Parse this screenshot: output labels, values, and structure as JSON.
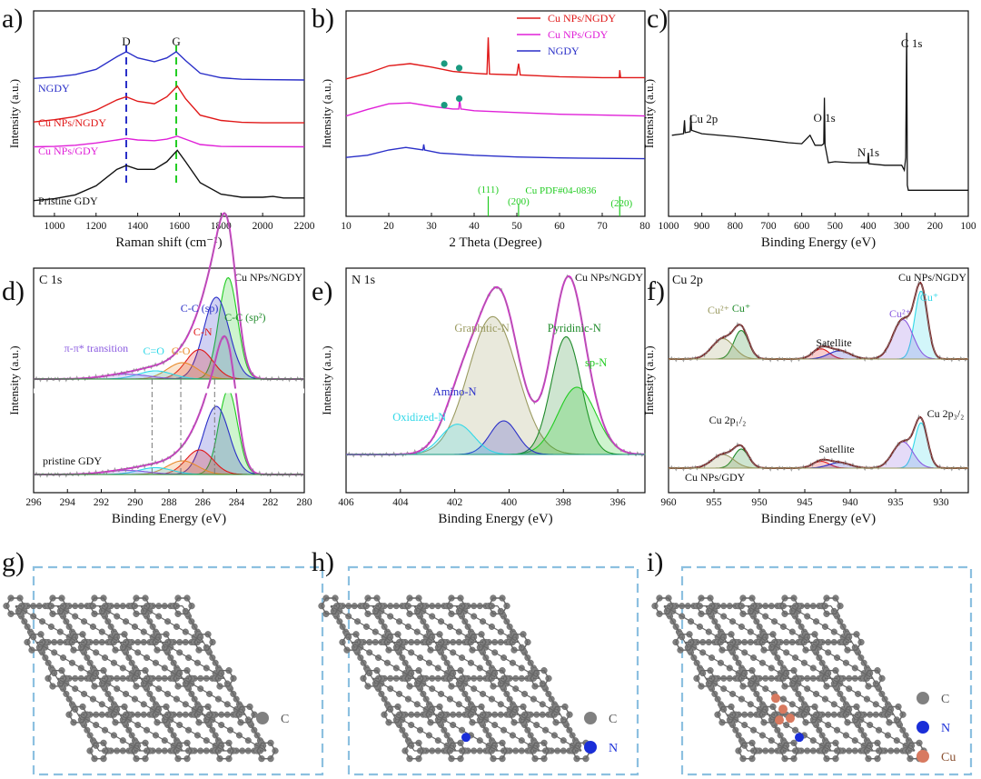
{
  "panel_letters": {
    "a": "a)",
    "b": "b)",
    "c": "c)",
    "d": "d)",
    "e": "e)",
    "f": "f)",
    "g": "g)",
    "h": "h)",
    "i": "i)"
  },
  "colors": {
    "blue": "#2a2fc8",
    "red": "#e01818",
    "magenta": "#e020d8",
    "black": "#111111",
    "green": "#22cc22",
    "gray": "#888888",
    "olive": "#9a9a60",
    "darkgreen": "#1f8a2a",
    "cyan": "#30d8e8",
    "teal": "#1a9a80",
    "brown": "#7a1a1a",
    "purple": "#8a5ae0",
    "orange": "#e88a2a",
    "dashbox": "#8cc0e0",
    "atomC": "#808080",
    "atomN": "#1a2ed8",
    "atomCu": "#d87a60"
  },
  "chart_data": [
    {
      "id": "a",
      "type": "line",
      "xlabel": "Raman shift (cm⁻¹)",
      "ylabel": "Intensity (a.u.)",
      "xlim": [
        900,
        2200
      ],
      "xticks": [
        1000,
        1200,
        1400,
        1600,
        1800,
        2000,
        2200
      ],
      "annotations": [
        "D",
        "G"
      ],
      "marker_lines": [
        1345,
        1585
      ],
      "series": [
        {
          "name": "NGDY",
          "color": "blue",
          "offset": 3.15,
          "points": [
            [
              900,
              0.08
            ],
            [
              1000,
              0.12
            ],
            [
              1100,
              0.18
            ],
            [
              1200,
              0.32
            ],
            [
              1300,
              0.65
            ],
            [
              1345,
              0.78
            ],
            [
              1400,
              0.62
            ],
            [
              1480,
              0.52
            ],
            [
              1540,
              0.62
            ],
            [
              1585,
              0.78
            ],
            [
              1630,
              0.55
            ],
            [
              1700,
              0.22
            ],
            [
              1800,
              0.1
            ],
            [
              1900,
              0.06
            ],
            [
              2000,
              0.05
            ],
            [
              2200,
              0.04
            ]
          ]
        },
        {
          "name": "Cu NPs/NGDY",
          "color": "red",
          "offset": 2.05,
          "points": [
            [
              900,
              0.04
            ],
            [
              1000,
              0.1
            ],
            [
              1100,
              0.18
            ],
            [
              1200,
              0.35
            ],
            [
              1300,
              0.62
            ],
            [
              1345,
              0.7
            ],
            [
              1400,
              0.58
            ],
            [
              1480,
              0.52
            ],
            [
              1540,
              0.7
            ],
            [
              1590,
              0.98
            ],
            [
              1630,
              0.65
            ],
            [
              1700,
              0.22
            ],
            [
              1800,
              0.08
            ],
            [
              1900,
              0.03
            ],
            [
              2000,
              0.02
            ],
            [
              2200,
              0.02
            ]
          ]
        },
        {
          "name": "Cu NPs/GDY",
          "color": "magenta",
          "offset": 1.42,
          "points": [
            [
              900,
              0.02
            ],
            [
              1000,
              0.03
            ],
            [
              1100,
              0.06
            ],
            [
              1200,
              0.12
            ],
            [
              1300,
              0.2
            ],
            [
              1345,
              0.24
            ],
            [
              1400,
              0.2
            ],
            [
              1480,
              0.18
            ],
            [
              1540,
              0.22
            ],
            [
              1590,
              0.3
            ],
            [
              1640,
              0.2
            ],
            [
              1700,
              0.08
            ],
            [
              1800,
              0.03
            ],
            [
              2200,
              0.02
            ]
          ]
        },
        {
          "name": "Pristine GDY",
          "color": "black",
          "offset": 0.0,
          "points": [
            [
              900,
              0.03
            ],
            [
              1000,
              0.08
            ],
            [
              1100,
              0.18
            ],
            [
              1200,
              0.42
            ],
            [
              1300,
              0.85
            ],
            [
              1345,
              0.95
            ],
            [
              1400,
              0.85
            ],
            [
              1480,
              0.85
            ],
            [
              1540,
              1.05
            ],
            [
              1590,
              1.35
            ],
            [
              1630,
              1.05
            ],
            [
              1700,
              0.5
            ],
            [
              1800,
              0.2
            ],
            [
              1900,
              0.12
            ],
            [
              2000,
              0.12
            ],
            [
              2050,
              0.14
            ],
            [
              2100,
              0.1
            ],
            [
              2200,
              0.1
            ]
          ]
        }
      ]
    },
    {
      "id": "b",
      "type": "line",
      "xlabel": "2 Theta (Degree)",
      "ylabel": "Intensity (a.u.)",
      "xlim": [
        10,
        80
      ],
      "xticks": [
        10,
        20,
        30,
        40,
        50,
        60,
        70,
        80
      ],
      "reference": {
        "label": "Cu PDF#04-0836",
        "peaks": [
          {
            "x": 43.3,
            "label": "(111)"
          },
          {
            "x": 50.4,
            "label": "(200)"
          },
          {
            "x": 74.1,
            "label": "(220)"
          }
        ]
      },
      "dots": [
        [
          33,
          3.25
        ],
        [
          36.5,
          3.15
        ],
        [
          33,
          2.3
        ],
        [
          36.5,
          2.45
        ]
      ],
      "series": [
        {
          "name": "Cu NPs/NGDY",
          "color": "red",
          "offset": 2.75,
          "points": [
            [
              10,
              0.15
            ],
            [
              15,
              0.28
            ],
            [
              20,
              0.45
            ],
            [
              25,
              0.5
            ],
            [
              30,
              0.42
            ],
            [
              35,
              0.32
            ],
            [
              40,
              0.28
            ],
            [
              43,
              0.26
            ],
            [
              43.3,
              1.1
            ],
            [
              43.6,
              0.26
            ],
            [
              50,
              0.24
            ],
            [
              50.4,
              0.5
            ],
            [
              50.8,
              0.24
            ],
            [
              60,
              0.2
            ],
            [
              70,
              0.18
            ],
            [
              74,
              0.18
            ],
            [
              74.1,
              0.35
            ],
            [
              74.3,
              0.18
            ],
            [
              80,
              0.18
            ]
          ]
        },
        {
          "name": "Cu NPs/GDY",
          "color": "magenta",
          "offset": 1.95,
          "points": [
            [
              10,
              0.1
            ],
            [
              15,
              0.25
            ],
            [
              20,
              0.38
            ],
            [
              25,
              0.4
            ],
            [
              30,
              0.32
            ],
            [
              35,
              0.26
            ],
            [
              36.4,
              0.26
            ],
            [
              36.6,
              0.48
            ],
            [
              36.9,
              0.26
            ],
            [
              40,
              0.22
            ],
            [
              50,
              0.18
            ],
            [
              60,
              0.14
            ],
            [
              70,
              0.12
            ],
            [
              80,
              0.1
            ]
          ]
        },
        {
          "name": "NGDY",
          "color": "blue",
          "offset": 1.05,
          "points": [
            [
              10,
              0.05
            ],
            [
              15,
              0.1
            ],
            [
              20,
              0.22
            ],
            [
              24,
              0.28
            ],
            [
              28,
              0.22
            ],
            [
              28.2,
              0.35
            ],
            [
              28.4,
              0.22
            ],
            [
              32,
              0.15
            ],
            [
              40,
              0.1
            ],
            [
              50,
              0.06
            ],
            [
              60,
              0.04
            ],
            [
              70,
              0.03
            ],
            [
              80,
              0.02
            ]
          ]
        }
      ]
    },
    {
      "id": "c",
      "type": "line",
      "xlabel": "Binding Energy (eV)",
      "ylabel": "Intensity (a.u.)",
      "xlim": [
        1000,
        100
      ],
      "xticks": [
        1000,
        900,
        800,
        700,
        600,
        500,
        400,
        300,
        200,
        100
      ],
      "annotations": [
        {
          "label": "C 1s",
          "x": 285
        },
        {
          "label": "O 1s",
          "x": 532
        },
        {
          "label": "N 1s",
          "x": 400
        },
        {
          "label": "Cu 2p",
          "x": 933
        }
      ],
      "series": [
        {
          "name": "",
          "color": "black",
          "points": [
            [
              990,
              1.15
            ],
            [
              955,
              1.18
            ],
            [
              952,
              1.45
            ],
            [
              950,
              1.2
            ],
            [
              935,
              1.22
            ],
            [
              933,
              1.55
            ],
            [
              931,
              1.25
            ],
            [
              900,
              1.18
            ],
            [
              800,
              1.12
            ],
            [
              700,
              1.05
            ],
            [
              640,
              1.0
            ],
            [
              600,
              0.98
            ],
            [
              575,
              1.15
            ],
            [
              560,
              0.95
            ],
            [
              540,
              0.95
            ],
            [
              534,
              0.98
            ],
            [
              532,
              1.9
            ],
            [
              530,
              0.95
            ],
            [
              520,
              0.6
            ],
            [
              500,
              0.62
            ],
            [
              450,
              0.6
            ],
            [
              402,
              0.6
            ],
            [
              400,
              0.8
            ],
            [
              398,
              0.58
            ],
            [
              350,
              0.55
            ],
            [
              300,
              0.55
            ],
            [
              292,
              0.45
            ],
            [
              288,
              0.7
            ],
            [
              285,
              3.2
            ],
            [
              283,
              0.15
            ],
            [
              280,
              0.05
            ],
            [
              250,
              0.05
            ],
            [
              100,
              0.05
            ]
          ]
        }
      ]
    },
    {
      "id": "d",
      "type": "line",
      "title": "C 1s",
      "sample_top": "Cu NPs/NGDY",
      "sample_bottom": "pristine GDY",
      "xlabel": "Binding Energy (eV)",
      "ylabel": "Intensity (a.u.)",
      "xlim": [
        296,
        280
      ],
      "xticks": [
        296,
        294,
        292,
        290,
        288,
        286,
        284,
        282,
        280
      ],
      "labels": [
        "C-C (sp)",
        "C-C (sp²)",
        "C-N",
        "C-O",
        "C=O",
        "π-π* transition"
      ],
      "series": [
        {
          "name": "C-C (sp²)",
          "color": "green",
          "center": 284.5,
          "height": 0.62,
          "width": 0.55
        },
        {
          "name": "C-C (sp)",
          "color": "blue",
          "center": 285.2,
          "height": 0.5,
          "width": 0.75
        },
        {
          "name": "C-N",
          "color": "red",
          "center": 286.2,
          "height": 0.18,
          "width": 0.8
        },
        {
          "name": "C-O",
          "color": "orange",
          "center": 287.2,
          "height": 0.1,
          "width": 0.9
        },
        {
          "name": "C=O",
          "color": "cyan",
          "center": 288.8,
          "height": 0.05,
          "width": 1.0
        },
        {
          "name": "π-π* transition",
          "color": "purple",
          "center": 290.5,
          "height": 0.03,
          "width": 1.3
        }
      ]
    },
    {
      "id": "e",
      "type": "line",
      "title": "N 1s",
      "sample": "Cu NPs/NGDY",
      "xlabel": "Binding Energy (eV)",
      "ylabel": "Intensity (a.u.)",
      "xlim": [
        406,
        395
      ],
      "xticks": [
        406,
        404,
        402,
        400,
        398,
        396
      ],
      "series": [
        {
          "name": "Graphitic-N",
          "color": "olive",
          "center": 400.6,
          "height": 0.82,
          "width": 0.9
        },
        {
          "name": "Pyridinic-N",
          "color": "darkgreen",
          "center": 397.9,
          "height": 0.7,
          "width": 0.55
        },
        {
          "name": "sp-N",
          "color": "green",
          "center": 397.5,
          "height": 0.4,
          "width": 0.7
        },
        {
          "name": "Amino-N",
          "color": "blue",
          "center": 400.2,
          "height": 0.2,
          "width": 0.5
        },
        {
          "name": "Oxidized-N",
          "color": "cyan",
          "center": 401.9,
          "height": 0.18,
          "width": 0.6
        }
      ]
    },
    {
      "id": "f",
      "type": "line",
      "title": "Cu 2p",
      "sample_top": "Cu NPs/NGDY",
      "sample_bottom": "Cu NPs/GDY",
      "xlabel": "Binding Energy (eV)",
      "ylabel": "Intensity (a.u.)",
      "xlim": [
        960,
        927
      ],
      "xticks": [
        960,
        955,
        950,
        945,
        940,
        935,
        930
      ],
      "labels": [
        "Cu²⁺",
        "Cu⁺",
        "Satellite",
        "Cu²⁺",
        "Cu⁺"
      ],
      "bottom_labels": [
        "Cu 2p₁/₂",
        "Satellite",
        "Cu 2p₃/₂"
      ],
      "series": [
        {
          "name": "Cu⁺ (2p3/2)",
          "color": "cyan",
          "center": 932.2,
          "height": 1.0,
          "width": 0.7
        },
        {
          "name": "Cu²⁺ (2p3/2)",
          "color": "purple",
          "center": 934.2,
          "height": 0.58,
          "width": 1.1
        },
        {
          "name": "Cu⁺ (2p1/2)",
          "color": "darkgreen",
          "center": 952.0,
          "height": 0.42,
          "width": 0.8
        },
        {
          "name": "Cu²⁺ (2p1/2)",
          "color": "olive",
          "center": 954.0,
          "height": 0.3,
          "width": 1.2
        },
        {
          "name": "Satellite",
          "color": "red",
          "center": 943.2,
          "height": 0.15,
          "width": 0.9
        },
        {
          "name": "Satellite",
          "color": "blue",
          "center": 941.2,
          "height": 0.12,
          "width": 1.2
        }
      ]
    }
  ],
  "structures": {
    "g": {
      "legend": [
        {
          "atom": "C",
          "label": "C"
        }
      ]
    },
    "h": {
      "legend": [
        {
          "atom": "C",
          "label": "C"
        },
        {
          "atom": "N",
          "label": "N"
        }
      ]
    },
    "i": {
      "legend": [
        {
          "atom": "C",
          "label": "C"
        },
        {
          "atom": "N",
          "label": "N"
        },
        {
          "atom": "Cu",
          "label": "Cu"
        }
      ]
    }
  }
}
